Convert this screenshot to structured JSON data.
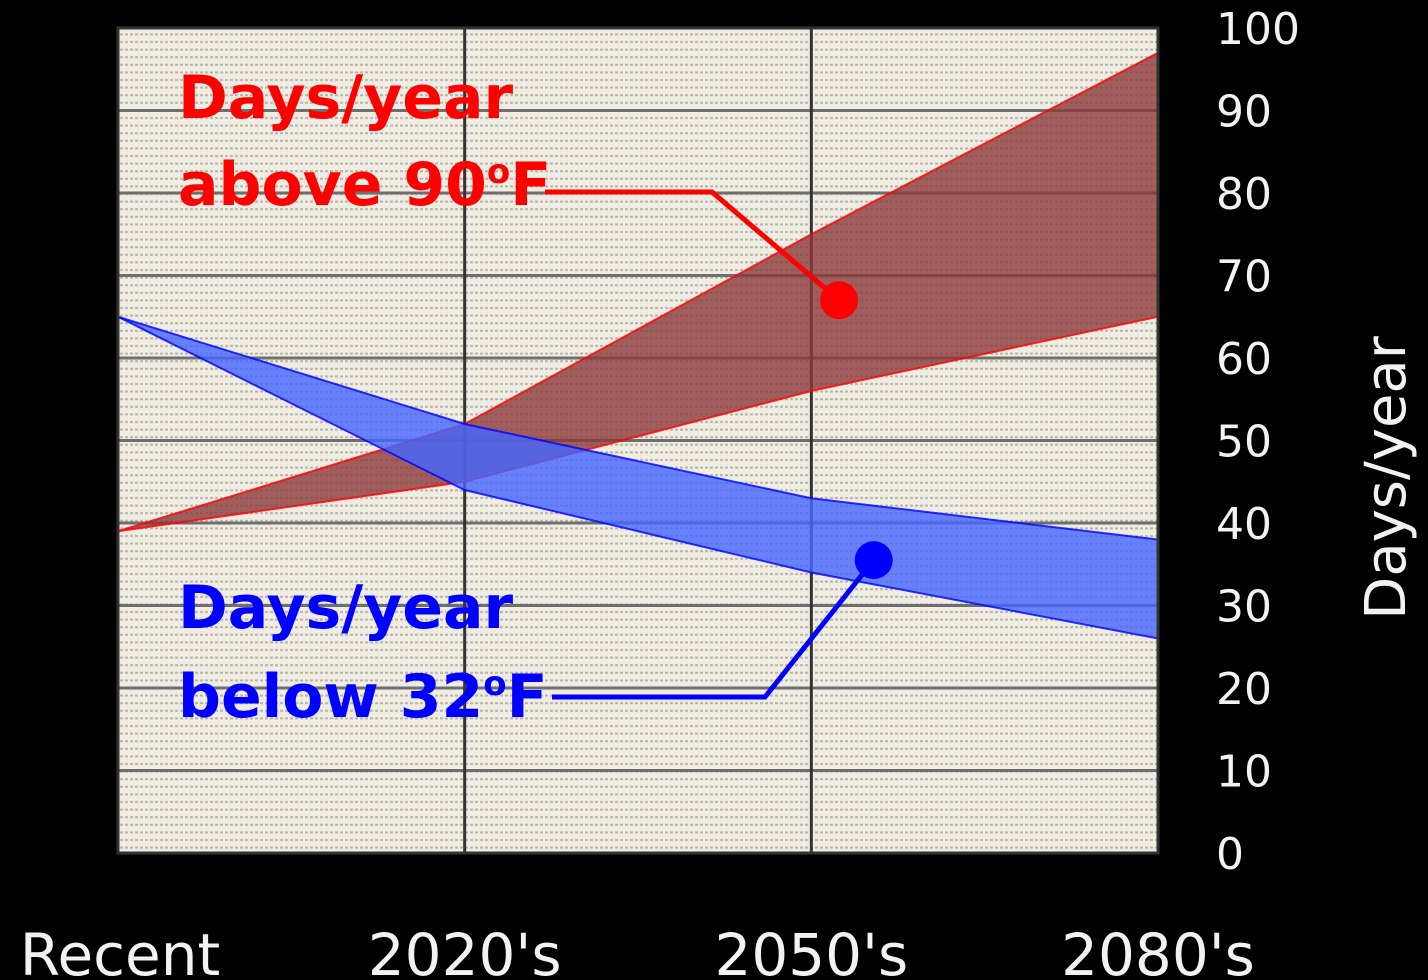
{
  "chart_data": {
    "type": "area",
    "categories": [
      "Recent",
      "2020's",
      "2050's",
      "2080's"
    ],
    "ylabel": "Days/year",
    "ylim": [
      0,
      100
    ],
    "yticks": [
      0,
      10,
      20,
      30,
      40,
      50,
      60,
      70,
      80,
      90,
      100
    ],
    "grid": true,
    "series": [
      {
        "color": "#ff0000",
        "fill": "#8b3a3a",
        "upper": [
          39,
          52,
          75,
          97
        ],
        "lower": [
          39,
          45,
          56,
          65
        ]
      },
      {
        "color": "#0000ff",
        "fill": "#4466ff",
        "upper": [
          65,
          52,
          43,
          38
        ],
        "lower": [
          65,
          44,
          34,
          26
        ]
      }
    ],
    "annotations": [
      {
        "line1": "Days/year",
        "line2_main": "above 90",
        "line2_sup": "o",
        "line2_end": "F",
        "color": "#ff0000",
        "point": [
          2.08,
          67
        ]
      },
      {
        "line1": "Days/year",
        "line2_main": "below 32",
        "line2_sup": "o",
        "line2_end": "F",
        "color": "#0000ff",
        "point": [
          2.18,
          35.5
        ]
      }
    ]
  }
}
